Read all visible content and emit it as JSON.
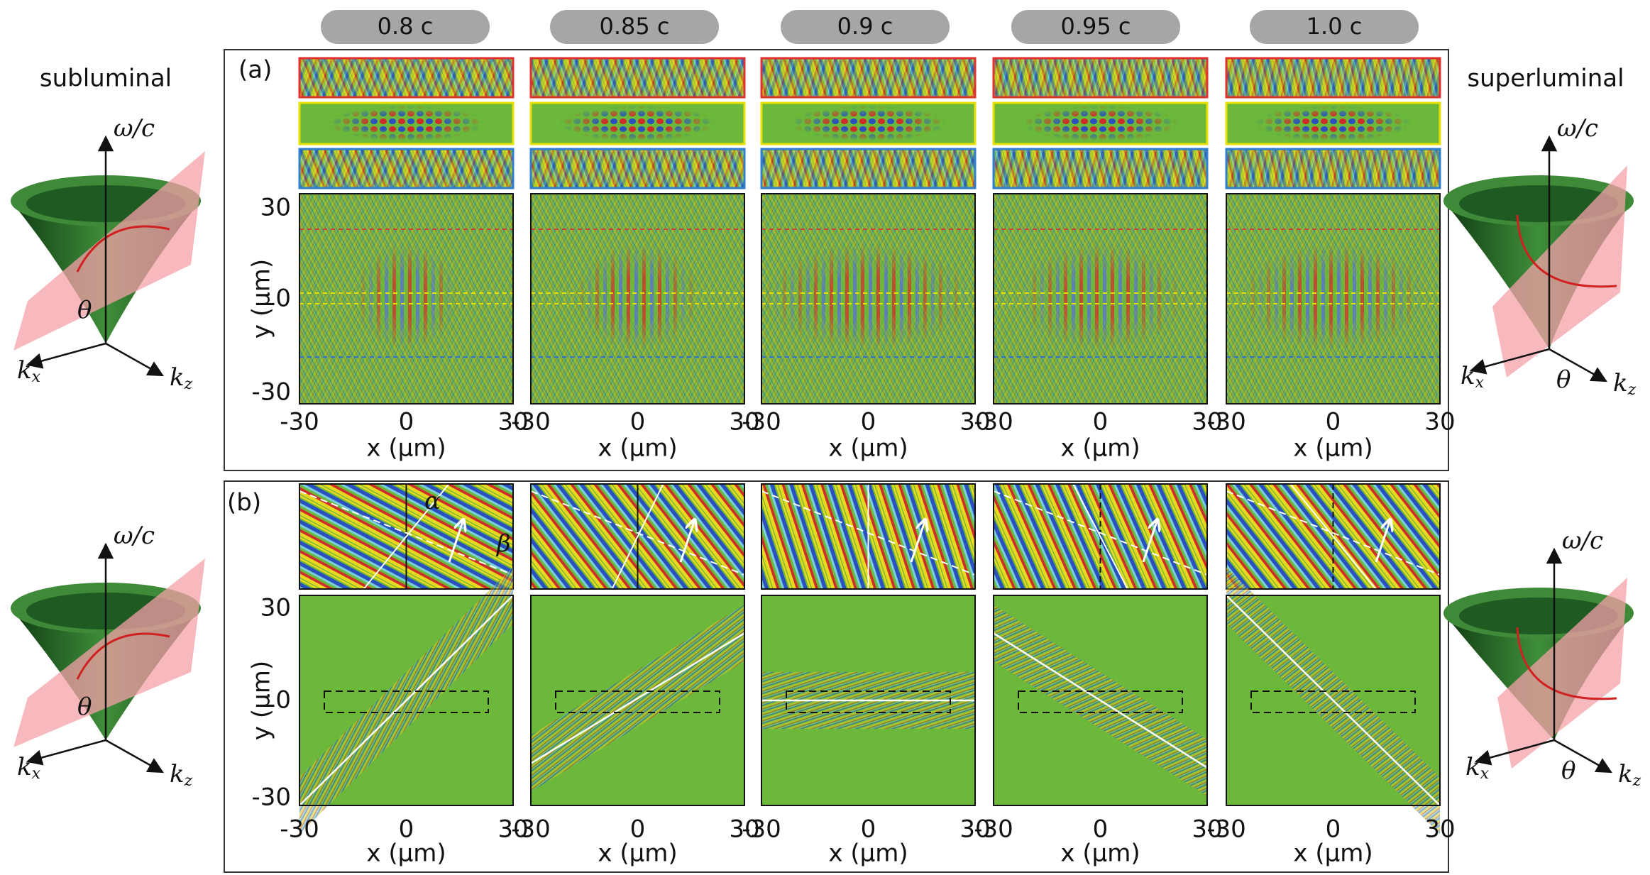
{
  "speed_labels": [
    "0.8 c",
    "0.85 c",
    "0.9 c",
    "0.95 c",
    "1.0 c"
  ],
  "left_title": "subluminal",
  "right_title": "superluminal",
  "panel_a": {
    "label": "(a)",
    "y_axis_label": "y (μm)",
    "x_axis_label": "x (μm)",
    "ticks": [
      "-30",
      "0",
      "30"
    ]
  },
  "panel_b": {
    "label": "(b)",
    "y_axis_label": "y (μm)",
    "x_axis_label": "x (μm)",
    "ticks": [
      "-30",
      "0",
      "30"
    ],
    "alpha": "α",
    "beta": "β"
  },
  "cone_labels": {
    "omega": "ω/c",
    "k": "k",
    "x": "x",
    "z": "z",
    "theta": "θ"
  }
}
